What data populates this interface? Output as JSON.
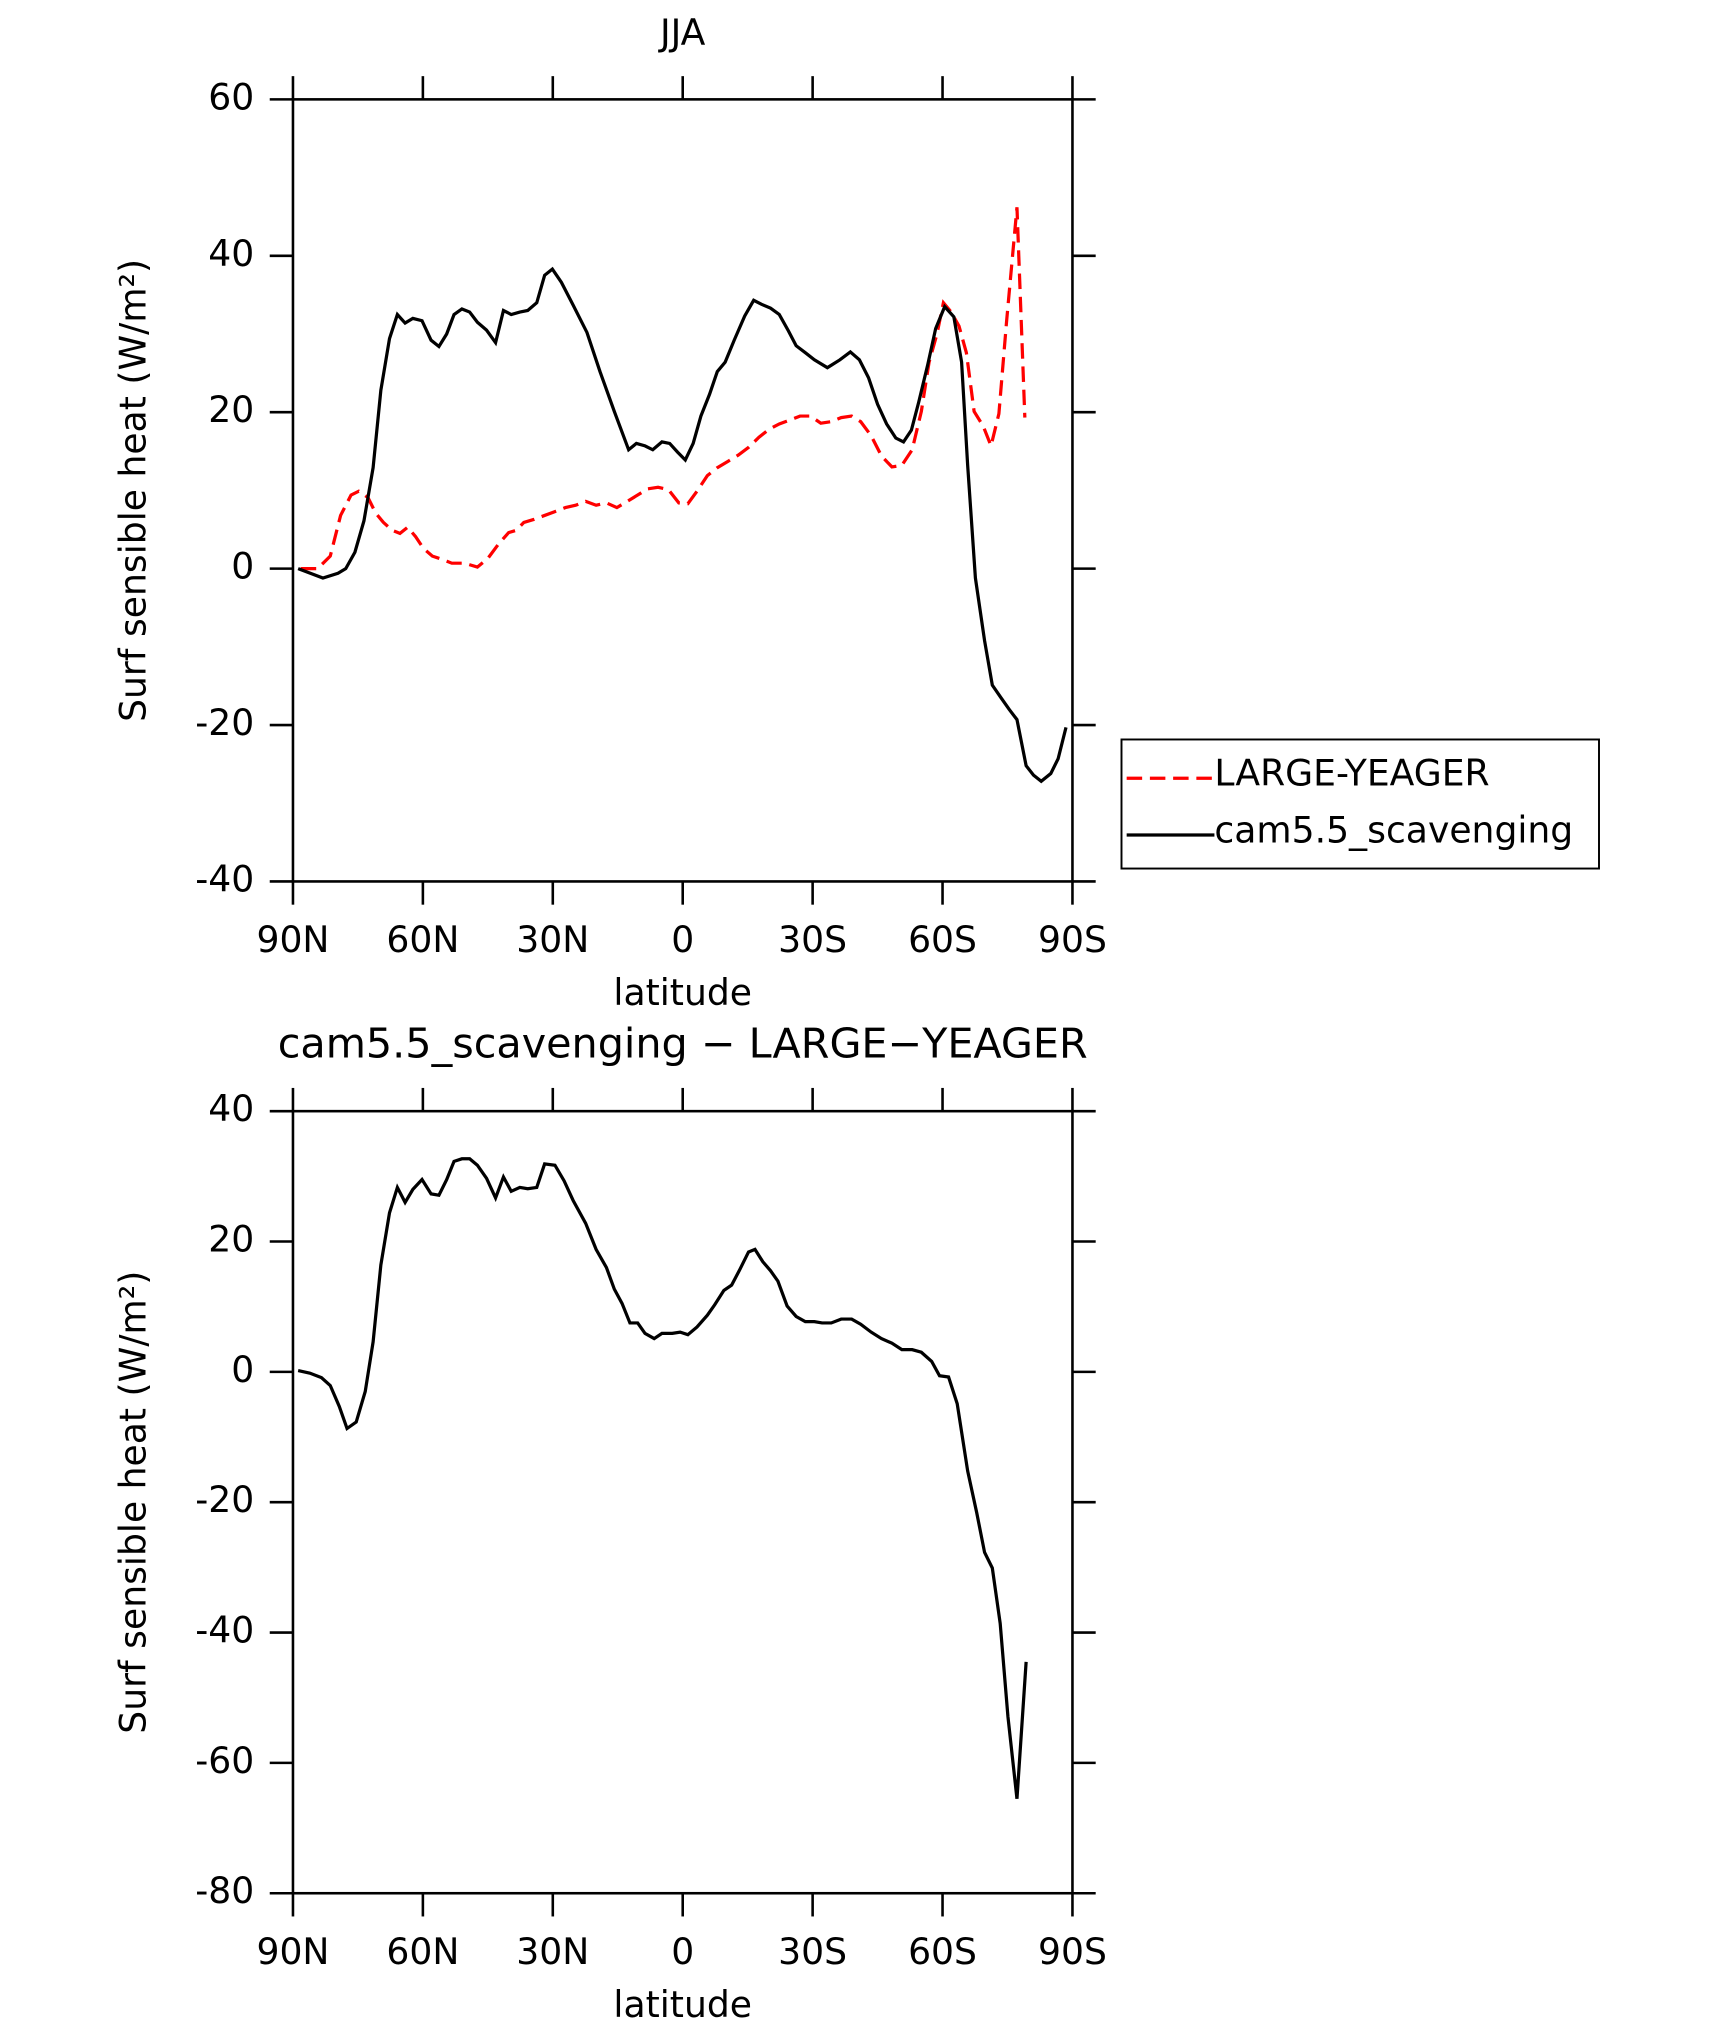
{
  "chart_data": [
    {
      "type": "line",
      "title": "JJA",
      "xlabel": "latitude",
      "ylabel": "Surf sensible heat (W/m²)",
      "xlim": [
        90,
        -90
      ],
      "xticks": [
        {
          "value": 90,
          "label": "90N"
        },
        {
          "value": 60,
          "label": "60N"
        },
        {
          "value": 30,
          "label": "30N"
        },
        0,
        {
          "value": -30,
          "label": "30S"
        },
        {
          "value": -60,
          "label": "60S"
        },
        {
          "value": -90,
          "label": "90S"
        }
      ],
      "ylim": [
        -40,
        60
      ],
      "yticks": [
        -40,
        -20,
        0,
        20,
        40,
        60
      ],
      "legend": "right",
      "series": [
        {
          "name": "LARGE-YEAGER",
          "color": "#ff0000",
          "dash": true,
          "x": [
            88.2,
            84.3,
            81.4,
            79,
            76.6,
            74.8,
            72.7,
            70.9,
            69.1,
            67.1,
            65.3,
            63.5,
            61.7,
            59.9,
            57.8,
            55.7,
            53.3,
            50.4,
            47.4,
            45,
            42.6,
            40.2,
            38.4,
            36.7,
            34.3,
            31.9,
            29.5,
            27.1,
            24.7,
            22.4,
            20,
            17.6,
            15.2,
            12.8,
            10.4,
            8.1,
            5.7,
            3.3,
            0.9,
            -1.2,
            -3.3,
            -5.7,
            -8,
            -10.4,
            -12.8,
            -15.2,
            -17.6,
            -19.9,
            -22.3,
            -24.7,
            -27.1,
            -29.5,
            -31.9,
            -34.3,
            -36.6,
            -39,
            -41.1,
            -43.5,
            -45.9,
            -48.3,
            -50.6,
            -53,
            -55.1,
            -56.9,
            -58.7,
            -60.2,
            -62,
            -63.8,
            -65.5,
            -67.3,
            -69.4,
            -71.2,
            -73,
            -74.8,
            -77.2,
            -79
          ],
          "values": [
            0,
            0,
            1.6,
            6.8,
            9.4,
            9.9,
            9.1,
            7.1,
            5.9,
            4.9,
            4.5,
            5.3,
            4.1,
            2.6,
            1.6,
            1.2,
            0.7,
            0.7,
            0.2,
            1.3,
            3.1,
            4.6,
            4.9,
            5.9,
            6.3,
            6.8,
            7.3,
            7.8,
            8.1,
            8.6,
            8.1,
            8.4,
            7.8,
            8.6,
            9.4,
            10.2,
            10.4,
            10.1,
            8.4,
            8.3,
            9.9,
            11.9,
            12.9,
            13.7,
            14.5,
            15.5,
            16.8,
            17.8,
            18.5,
            19,
            19.5,
            19.5,
            18.6,
            18.8,
            19.3,
            19.5,
            18.8,
            17,
            14.4,
            13,
            13.2,
            15.2,
            20.1,
            26.4,
            30,
            34,
            32.8,
            31,
            27.6,
            20.1,
            18.2,
            15.7,
            19.8,
            31.7,
            46.2,
            19.3
          ]
        },
        {
          "name": "cam5.5_scavenging",
          "color": "#000000",
          "dash": false,
          "x": [
            88.8,
            83.1,
            79.6,
            77.8,
            75.7,
            73.6,
            71.5,
            69.7,
            67.7,
            65.9,
            64.1,
            62.3,
            60.2,
            58.1,
            56.3,
            54.5,
            52.8,
            51,
            49.2,
            47.4,
            45.3,
            43.2,
            41.4,
            39.6,
            37.6,
            35.8,
            33.7,
            31.9,
            30.1,
            28,
            25.3,
            22.1,
            19.1,
            15.8,
            12.5,
            10.7,
            8.7,
            6.9,
            4.8,
            3,
            1.2,
            -0.6,
            -2.4,
            -4.2,
            -6.2,
            -8,
            -9.8,
            -11.9,
            -14.3,
            -16.4,
            -18.2,
            -20.3,
            -22.3,
            -24.4,
            -26.2,
            -28.3,
            -30.4,
            -33.4,
            -36.3,
            -38.7,
            -40.8,
            -42.9,
            -45,
            -47.1,
            -49.2,
            -51,
            -52.8,
            -54.5,
            -56.6,
            -58.4,
            -60.5,
            -62.6,
            -64.4,
            -65.8,
            -67.6,
            -69.7,
            -71.5,
            -73.5,
            -75.4,
            -77.2,
            -79.3,
            -81,
            -82.8,
            -85,
            -86.7,
            -88.5
          ],
          "values": [
            0,
            -1.2,
            -0.6,
            0,
            2.1,
            6.1,
            12.9,
            22.8,
            29.4,
            32.5,
            31.4,
            32,
            31.7,
            29.2,
            28.4,
            30,
            32.5,
            33.2,
            32.8,
            31.5,
            30.5,
            28.9,
            33,
            32.5,
            32.8,
            33,
            34,
            37.5,
            38.3,
            36.6,
            33.7,
            30.2,
            25.2,
            20.1,
            15.2,
            16,
            15.7,
            15.2,
            16.2,
            16,
            14.9,
            13.9,
            16,
            19.5,
            22.3,
            25.2,
            26.4,
            29.2,
            32.3,
            34.3,
            33.8,
            33.3,
            32.5,
            30.4,
            28.5,
            27.6,
            26.7,
            25.7,
            26.7,
            27.7,
            26.7,
            24.4,
            21,
            18.5,
            16.7,
            16.2,
            17.7,
            21.3,
            26.1,
            30.7,
            33.5,
            32.2,
            26.4,
            13.2,
            -1.2,
            -9.2,
            -14.9,
            -16.5,
            -18,
            -19.3,
            -25.2,
            -26.4,
            -27.2,
            -26.2,
            -24.3,
            -20.3
          ]
        }
      ]
    },
    {
      "type": "line",
      "title": "cam5.5_scavenging − LARGE−YEAGER",
      "xlabel": "latitude",
      "ylabel": "Surf sensible heat (W/m²)",
      "xlim": [
        90,
        -90
      ],
      "xticks": [
        {
          "value": 90,
          "label": "90N"
        },
        {
          "value": 60,
          "label": "60N"
        },
        {
          "value": 30,
          "label": "30N"
        },
        0,
        {
          "value": -30,
          "label": "30S"
        },
        {
          "value": -60,
          "label": "60S"
        },
        {
          "value": -90,
          "label": "90S"
        }
      ],
      "ylim": [
        -80,
        40
      ],
      "yticks": [
        -80,
        -60,
        -40,
        -20,
        0,
        20,
        40
      ],
      "series": [
        {
          "color": "#000000",
          "dash": false,
          "x": [
            88.8,
            86.1,
            83.4,
            81.4,
            79.3,
            77.5,
            75.4,
            73.3,
            71.5,
            69.7,
            67.7,
            65.9,
            64.1,
            62.3,
            60.2,
            58.1,
            56.3,
            54.5,
            52.8,
            51,
            49.2,
            47.4,
            45.3,
            43.2,
            41.4,
            39.6,
            37.6,
            35.8,
            33.7,
            31.9,
            29.5,
            27.4,
            25.3,
            22.4,
            20,
            17.6,
            15.8,
            14,
            12.2,
            10.4,
            8.7,
            6.6,
            4.8,
            2.4,
            0.6,
            -1.2,
            -3.3,
            -5.7,
            -7.4,
            -9.5,
            -11.3,
            -13.1,
            -15.2,
            -16.7,
            -18.5,
            -20.3,
            -22,
            -24.1,
            -26.2,
            -28.3,
            -30.4,
            -32.2,
            -34.3,
            -36.6,
            -39,
            -41.1,
            -43.5,
            -45.9,
            -48.3,
            -50.6,
            -53,
            -55.1,
            -57.5,
            -59.3,
            -61.4,
            -63.4,
            -65.8,
            -67.9,
            -69.7,
            -71.5,
            -73.3,
            -75.1,
            -77.2,
            -79.3
          ],
          "values": [
            0.2,
            -0.2,
            -0.9,
            -2.1,
            -5.3,
            -8.7,
            -7.7,
            -3,
            4.6,
            16.4,
            24.4,
            28.3,
            26,
            28,
            29.5,
            27.3,
            27.1,
            29.5,
            32.3,
            32.7,
            32.7,
            31.7,
            29.7,
            26.7,
            29.9,
            27.7,
            28.3,
            28.1,
            28.3,
            31.9,
            31.7,
            29.3,
            26.3,
            22.8,
            18.8,
            16,
            12.7,
            10.5,
            7.5,
            7.5,
            5.9,
            5.1,
            5.9,
            5.9,
            6.1,
            5.7,
            6.9,
            8.7,
            10.3,
            12.5,
            13.3,
            15.6,
            18.4,
            18.8,
            16.9,
            15.5,
            13.9,
            10.1,
            8.5,
            7.7,
            7.7,
            7.5,
            7.5,
            8.1,
            8.1,
            7.3,
            6.1,
            5.1,
            4.4,
            3.4,
            3.4,
            3,
            1.6,
            -0.6,
            -0.8,
            -4.9,
            -15.2,
            -21.6,
            -27.7,
            -30.1,
            -38.6,
            -52.9,
            -65.5,
            -44.5
          ]
        }
      ]
    }
  ]
}
